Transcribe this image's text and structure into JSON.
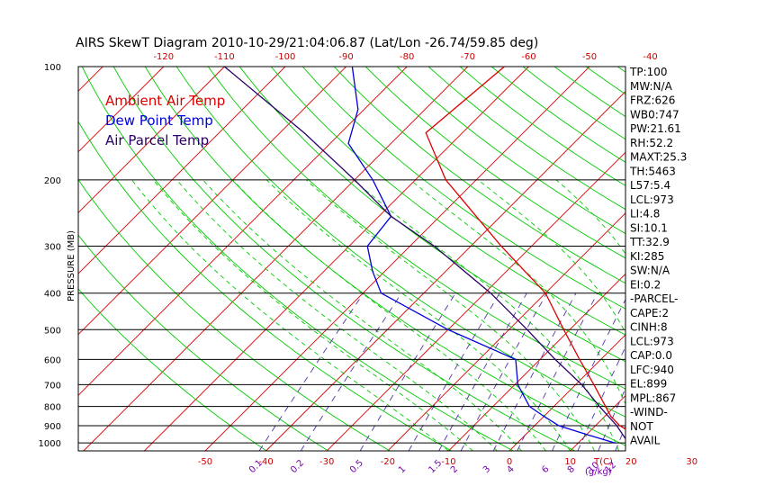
{
  "chart_data": {
    "type": "line",
    "title": "AIRS SkewT Diagram 2010-10-29/21:04:06.87 (Lat/Lon -26.74/59.85 deg)",
    "ylabel": "PRESSURE (MB)",
    "y_scale": "log",
    "ylim": [
      1050,
      100
    ],
    "y_ticks": [
      100,
      200,
      300,
      400,
      500,
      600,
      700,
      800,
      900,
      1000
    ],
    "top_axis_ticks": [
      -120,
      -110,
      -100,
      -90,
      -80,
      -70,
      -60,
      -50,
      -40
    ],
    "bottom_axis_ticks": [
      -50,
      -40,
      -30,
      -20,
      -10,
      0,
      10,
      20,
      30
    ],
    "bottom_axis_unit": "T(C)",
    "mixing_ratio_labels": [
      "0.1",
      "0.2",
      "0.5",
      "1",
      "1.5",
      "2",
      "3",
      "4",
      "6",
      "8",
      "10",
      "12",
      "15",
      "20",
      "25",
      "30",
      "40"
    ],
    "mixing_ratio_unit": "(g/kg)",
    "legend": [
      "Ambient Air Temp",
      "Dew Point Temp",
      "Air Parcel Temp"
    ],
    "legend_position": "top-left",
    "series": [
      {
        "name": "Ambient Air Temp",
        "color": "#dd0000",
        "points": [
          [
            1000,
            20
          ],
          [
            950,
            18
          ],
          [
            900,
            14
          ],
          [
            850,
            11
          ],
          [
            800,
            8.5
          ],
          [
            700,
            3
          ],
          [
            600,
            -3.5
          ],
          [
            500,
            -11
          ],
          [
            400,
            -20
          ],
          [
            300,
            -35
          ],
          [
            250,
            -44
          ],
          [
            200,
            -55
          ],
          [
            150,
            -66
          ],
          [
            100,
            -64
          ]
        ]
      },
      {
        "name": "Dew Point Temp",
        "color": "#0000dd",
        "points": [
          [
            1000,
            16
          ],
          [
            950,
            10
          ],
          [
            900,
            4
          ],
          [
            850,
            0
          ],
          [
            800,
            -4
          ],
          [
            700,
            -9.5
          ],
          [
            600,
            -14
          ],
          [
            500,
            -30
          ],
          [
            400,
            -47
          ],
          [
            350,
            -52
          ],
          [
            300,
            -57
          ],
          [
            250,
            -58
          ],
          [
            200,
            -67
          ],
          [
            160,
            -77
          ],
          [
            130,
            -81
          ],
          [
            100,
            -89
          ]
        ]
      },
      {
        "name": "Air Parcel Temp",
        "color": "#2a0066",
        "points": [
          [
            1000,
            20
          ],
          [
            973,
            17
          ],
          [
            900,
            13.5
          ],
          [
            800,
            7.5
          ],
          [
            700,
            1
          ],
          [
            600,
            -7.5
          ],
          [
            500,
            -17
          ],
          [
            400,
            -29
          ],
          [
            300,
            -46
          ],
          [
            250,
            -58
          ],
          [
            200,
            -70
          ],
          [
            150,
            -86
          ],
          [
            100,
            -110
          ]
        ]
      }
    ]
  },
  "indices": [
    "TP:100",
    "MW:N/A",
    "FRZ:626",
    "WB0:747",
    "PW:21.61",
    "RH:52.2",
    "MAXT:25.3",
    "TH:5463",
    "L57:5.4",
    "LCL:973",
    "LI:4.8",
    "SI:10.1",
    "TT:32.9",
    "KI:285",
    "SW:N/A",
    "EI:0.2",
    "-PARCEL-",
    "CAPE:2",
    "CINH:8",
    "LCL:973",
    "CAP:0.0",
    "LFC:940",
    "EL:899",
    "MPL:867",
    "-WIND-",
    "NOT",
    "AVAIL"
  ],
  "colors": {
    "isotherm": "#dd0000",
    "dry_adiabat": "#00cc00",
    "moist_adiabat": "#00cc00",
    "mixing_ratio": "#5533aa",
    "temperature": "#dd0000",
    "dewpoint": "#0000dd",
    "parcel": "#2a0066",
    "axis_text": "#cc0000",
    "mixing_text": "#7700aa"
  }
}
